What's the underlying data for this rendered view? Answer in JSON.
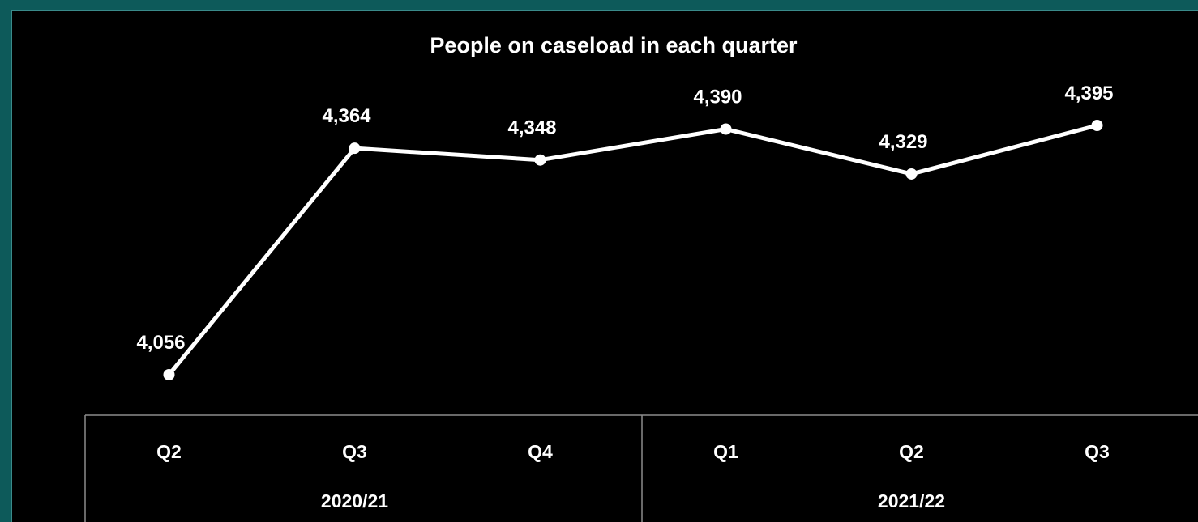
{
  "chart_data": {
    "type": "line",
    "title": "People on caseload in each quarter",
    "categories": [
      "Q2",
      "Q3",
      "Q4",
      "Q1",
      "Q2",
      "Q3"
    ],
    "groups": [
      {
        "label": "2020/21",
        "span": 3
      },
      {
        "label": "2021/22",
        "span": 3
      }
    ],
    "series": [
      {
        "values": [
          4056,
          4364,
          4348,
          4390,
          4329,
          4395
        ]
      }
    ],
    "data_labels": [
      "4,056",
      "4,364",
      "4,348",
      "4,390",
      "4,329",
      "4,395"
    ],
    "ylim": [
      4000,
      4450
    ],
    "grid": false,
    "legend": "none",
    "colors": {
      "background": "#000000",
      "line": "#ffffff",
      "text": "#ffffff",
      "axis": "#8c8c8c",
      "outer": "#0d5a5a"
    }
  }
}
